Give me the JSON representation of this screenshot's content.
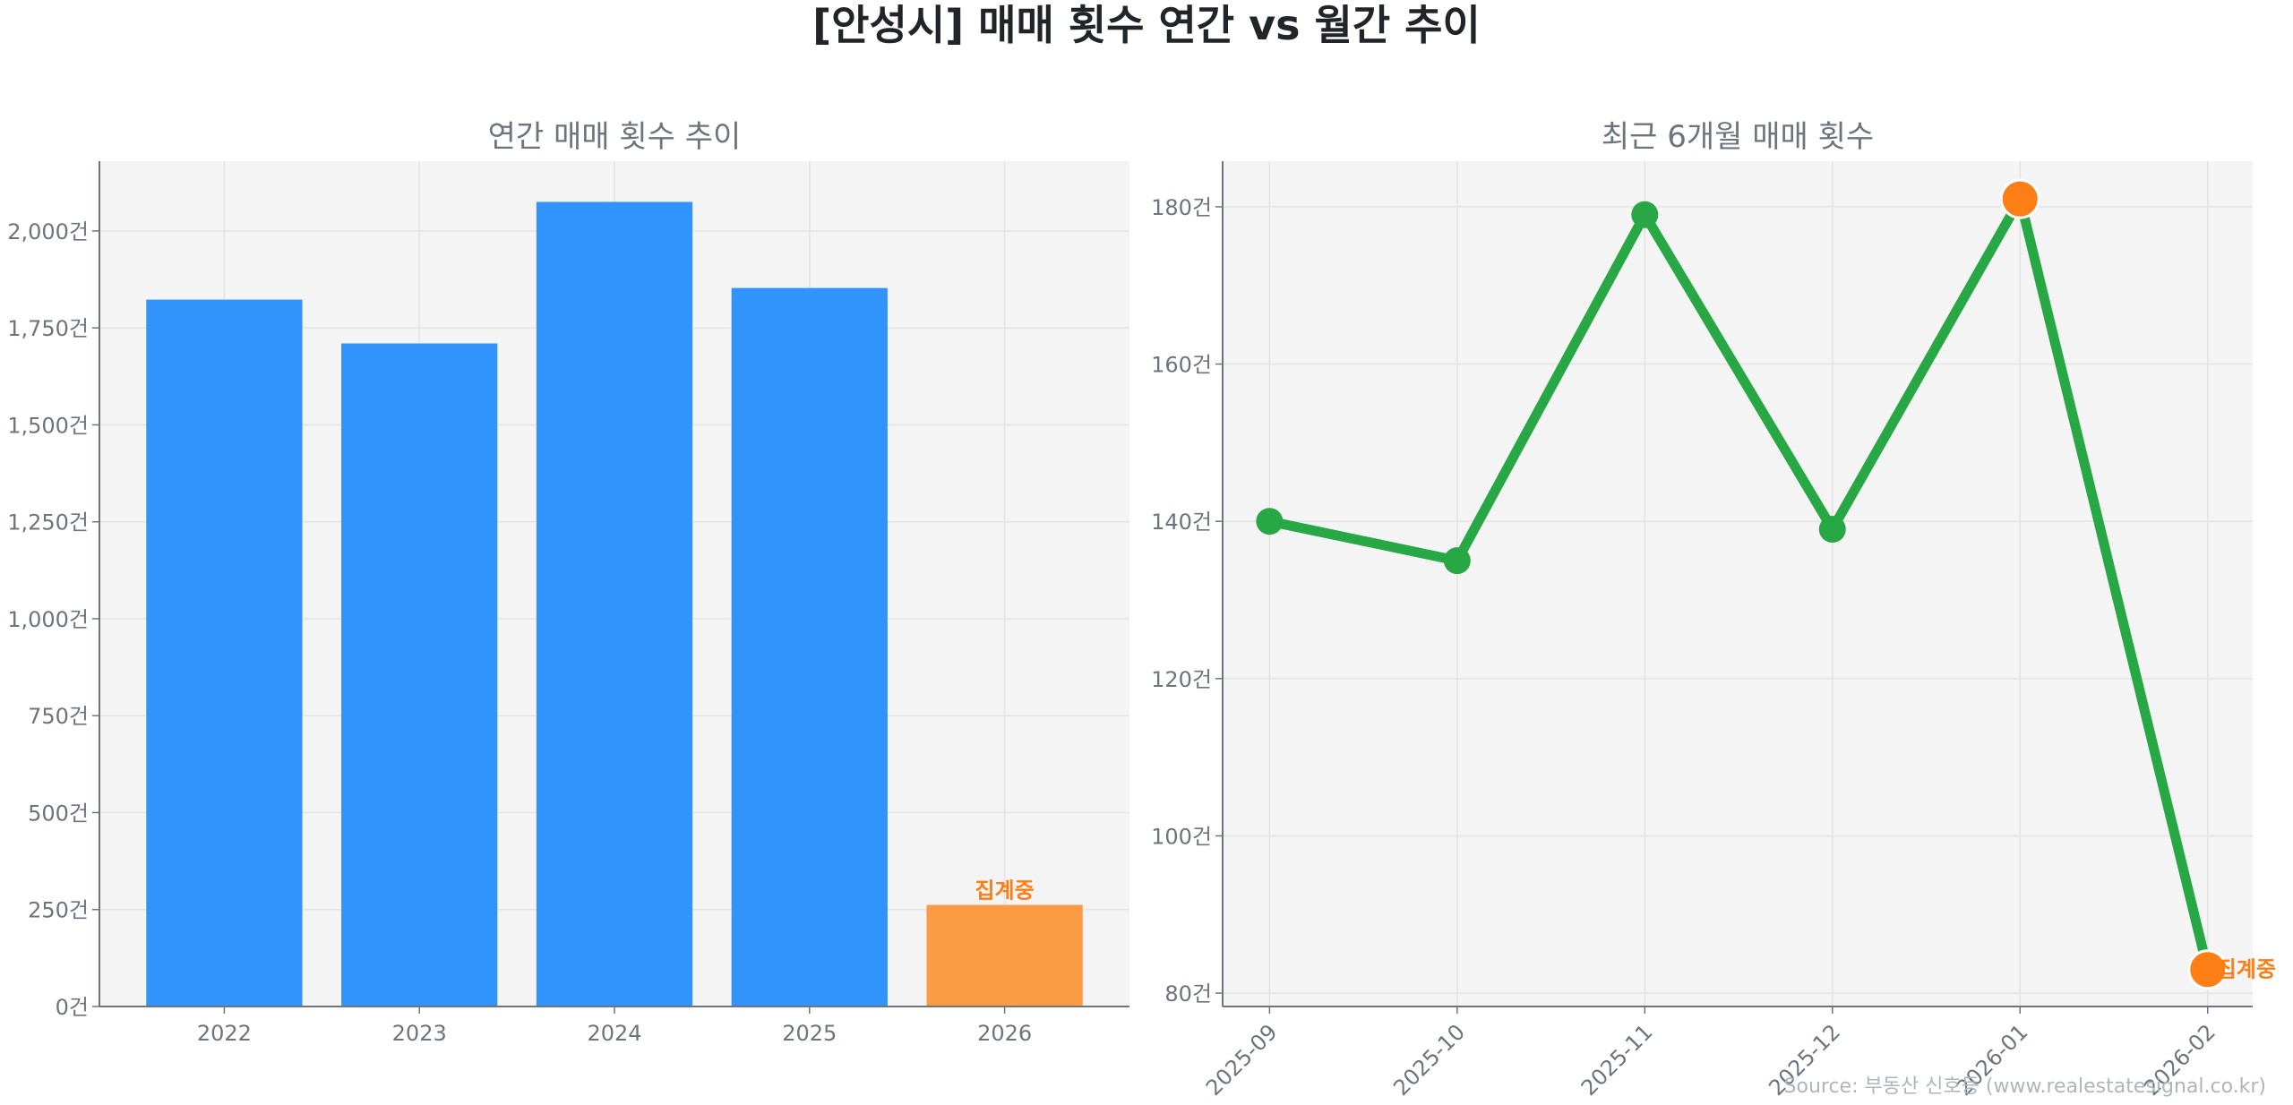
{
  "title": "[안성시] 매매 횟수 연간 vs 월간 추이",
  "source": "Source: 부동산 신호등 (www.realestatesignal.co.kr)",
  "colors": {
    "bar": "#3193fc",
    "bar_partial": "#fa9a42",
    "line": "#28a745",
    "highlight": "#fd7e14",
    "axes_bg": "#f4f4f4"
  },
  "chart_data": [
    {
      "type": "bar",
      "title": "연간 매매 횟수 추이",
      "categories": [
        "2022",
        "2023",
        "2024",
        "2025",
        "2026"
      ],
      "values": [
        1823,
        1710,
        2075,
        1853,
        262
      ],
      "partial": [
        false,
        false,
        false,
        false,
        true
      ],
      "annotation": "집계중",
      "ylim": [
        0,
        2180
      ],
      "yticks": [
        0,
        250,
        500,
        750,
        1000,
        1250,
        1500,
        1750,
        2000
      ],
      "ytick_labels": [
        "0건",
        "250건",
        "500건",
        "750건",
        "1,000건",
        "1,250건",
        "1,500건",
        "1,750건",
        "2,000건"
      ],
      "grid": true
    },
    {
      "type": "line",
      "title": "최근 6개월 매매 횟수",
      "categories": [
        "2025-09",
        "2025-10",
        "2025-11",
        "2025-12",
        "2026-01",
        "2026-02"
      ],
      "values": [
        140,
        135,
        179,
        139,
        181,
        83
      ],
      "highlight": [
        false,
        false,
        false,
        false,
        true,
        true
      ],
      "annotation": "집계중",
      "ylim": [
        78.3,
        185.8
      ],
      "yticks": [
        80,
        100,
        120,
        140,
        160,
        180
      ],
      "ytick_labels": [
        "80건",
        "100건",
        "120건",
        "140건",
        "160건",
        "180건"
      ],
      "grid": true
    }
  ]
}
